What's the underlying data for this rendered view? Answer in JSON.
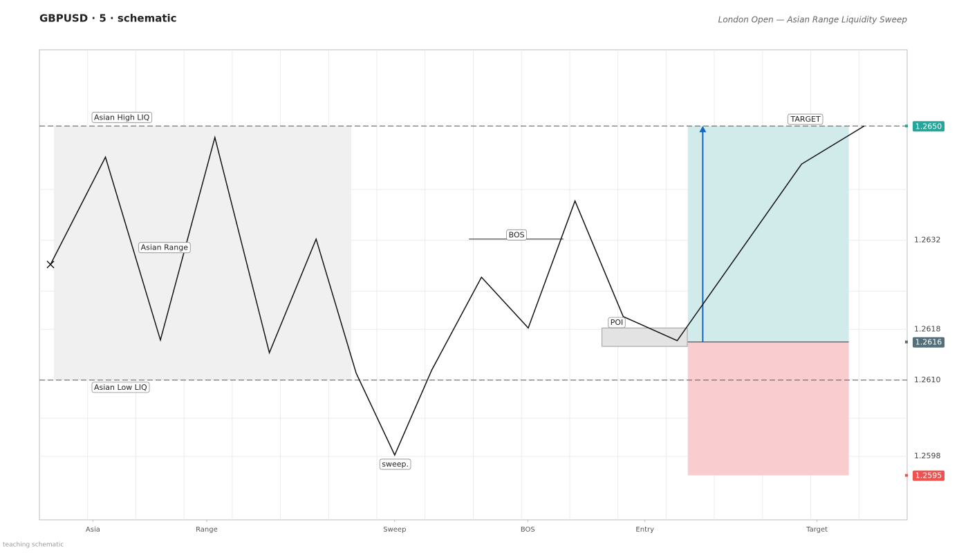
{
  "chart_data": {
    "type": "line",
    "title": "GBPUSD · 5 · schematic",
    "subtitle": "London Open — Asian Range Liquidity Sweep",
    "footer": "teaching schematic",
    "x": [
      2.3,
      13.7,
      25.1,
      36.4,
      47.7,
      57.4,
      65.7,
      73.7,
      81.4,
      91.7,
      101.4,
      111.1,
      121.1,
      132.3,
      158.1,
      171.1
    ],
    "values": [
      1.26282,
      1.26451,
      1.26163,
      1.26482,
      1.26143,
      1.26322,
      1.26111,
      1.25982,
      1.26116,
      1.26262,
      1.26182,
      1.26382,
      1.262,
      1.26162,
      1.2644,
      1.265
    ],
    "color": "#111111",
    "start_marker": "x",
    "xlim": [
      0,
      180
    ],
    "ylim": [
      1.2588,
      1.2662
    ],
    "xticks": [
      {
        "value": 11.1,
        "label": "Asia"
      },
      {
        "value": 34.7,
        "label": "Range"
      },
      {
        "value": 73.7,
        "label": "Sweep"
      },
      {
        "value": 101.3,
        "label": "BOS"
      },
      {
        "value": 125.6,
        "label": "Entry"
      },
      {
        "value": 161.3,
        "label": "Target"
      }
    ],
    "yticks": [
      1.2598,
      {
        "value": 1.261,
        "label": "1.2610"
      },
      1.2618,
      1.2632
    ],
    "xgrid": [
      10,
      20,
      30,
      40,
      50,
      60,
      70,
      80,
      90,
      100,
      110,
      120,
      130,
      140,
      150,
      160,
      170
    ],
    "ygrid": [
      1.2604,
      1.2624,
      1.264
    ],
    "levels": [
      {
        "value": 1.265,
        "color": "#555555"
      },
      {
        "value": 1.261,
        "color": "#555555"
      }
    ],
    "zones": [
      {
        "x": [
          3,
          64.7
        ],
        "y": [
          1.261,
          1.265
        ],
        "color": "#f0f0f0"
      },
      {
        "x": [
          116.7,
          134.4
        ],
        "y": [
          1.26153,
          1.26182
        ],
        "color": "#e3e3e3"
      },
      {
        "x": [
          134.5,
          167.9
        ],
        "y": [
          1.2616,
          1.265
        ],
        "color": "#d0ebea"
      },
      {
        "x": [
          134.5,
          167.9
        ],
        "y": [
          1.2595,
          1.2616
        ],
        "color": "#f9cccf"
      }
    ],
    "segments": [
      {
        "x": [
          89.1,
          108.7
        ],
        "y": 1.26322,
        "color": "#222222"
      },
      {
        "x": [
          134.5,
          167.9
        ],
        "y": 1.2616,
        "color": "#333333"
      }
    ],
    "arrow": {
      "x": 137.6,
      "y": [
        1.2616,
        1.265
      ],
      "color": "#1565c0"
    },
    "annotations": [
      {
        "text": "Asian High LIQ",
        "x": 10.9,
        "y": 1.26513
      },
      {
        "text": "Asian Range",
        "x": 20.6,
        "y": 1.26308
      },
      {
        "text": "Asian Low LIQ",
        "x": 10.9,
        "y": 1.26088
      },
      {
        "text": "sweep.",
        "x": 70.6,
        "y": 1.25967
      },
      {
        "text": "BOS",
        "x": 96.9,
        "y": 1.26328
      },
      {
        "text": "POI",
        "x": 118,
        "y": 1.2619
      },
      {
        "text": "TARGET",
        "x": 155.4,
        "y": 1.2651
      }
    ],
    "price_labels": [
      {
        "value": 1.265,
        "label": "1.2650",
        "color": "#26a69a"
      },
      {
        "value": 1.2616,
        "color": "#546e7a"
      },
      {
        "value": 1.2595,
        "color": "#ef5350"
      }
    ]
  }
}
